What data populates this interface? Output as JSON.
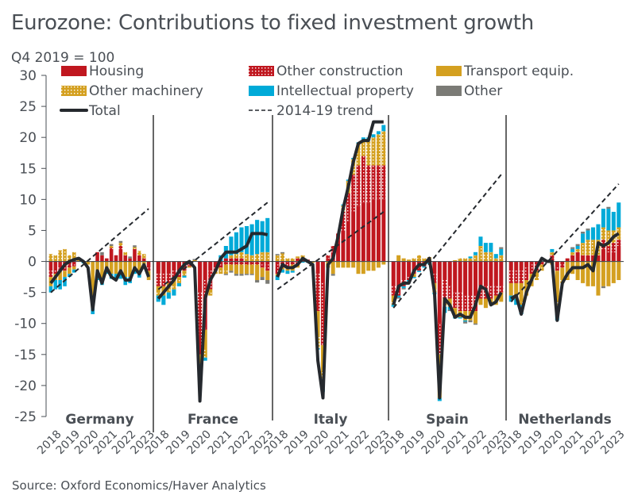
{
  "title": "Eurozone: Contributions to fixed investment growth",
  "subtitle": "Q4 2019 = 100",
  "source": "Source: Oxford Economics/Haver Analytics",
  "chart_data": {
    "type": "bar",
    "stacked": true,
    "title": "Eurozone: Contributions to fixed investment growth",
    "ylabel": "Q4 2019 = 100",
    "ylim": [
      -25,
      30
    ],
    "yticks": [
      30,
      25,
      20,
      15,
      10,
      5,
      0,
      -5,
      -10,
      -15,
      -20,
      -25
    ],
    "xtick_labels": [
      "2018",
      "2019",
      "2020",
      "2021",
      "2022",
      "2023"
    ],
    "legend_placement": "top",
    "legend": [
      {
        "key": "housing",
        "label": "Housing",
        "color": "#c0171f",
        "pattern": "solid"
      },
      {
        "key": "other_construction",
        "label": "Other construction",
        "color": "#c0171f",
        "pattern": "dotted"
      },
      {
        "key": "transport",
        "label": "Transport equip.",
        "color": "#d4a020",
        "pattern": "solid"
      },
      {
        "key": "other_machinery",
        "label": "Other machinery",
        "color": "#d4a020",
        "pattern": "dotted"
      },
      {
        "key": "ip",
        "label": "Intellectual property",
        "color": "#00aad8",
        "pattern": "solid"
      },
      {
        "key": "other",
        "label": "Other",
        "color": "#7b7b76",
        "pattern": "solid"
      },
      {
        "key": "total",
        "label": "Total",
        "color": "#25292e",
        "style": "line"
      },
      {
        "key": "trend",
        "label": "2014-19 trend",
        "color": "#25292e",
        "style": "dashed"
      }
    ],
    "quarters_per_panel": 22,
    "period": "2018Q1-2023Q2",
    "panels": [
      {
        "name": "Germany",
        "trend": [
          -5.0,
          8.5
        ],
        "total": [
          -3.5,
          -2.5,
          -1.5,
          -0.5,
          0,
          0.3,
          0.5,
          0,
          -1,
          -7.8,
          -1.5,
          -3.5,
          -1,
          -2.5,
          -3,
          -1.5,
          -3,
          -3,
          -1,
          -2,
          -0.5,
          -2.5
        ],
        "housing": [
          -1.5,
          -1.5,
          -1,
          -1,
          -0.5,
          -0.5,
          0,
          0,
          0,
          0,
          1.5,
          1,
          0.5,
          2,
          1,
          2,
          1,
          0.5,
          2,
          1,
          0.5,
          -1
        ],
        "other_construction": [
          -1,
          -0.5,
          -0.5,
          -0.5,
          -0.5,
          -0.3,
          0,
          0,
          0,
          0,
          0,
          0,
          0,
          0.2,
          0,
          0.5,
          0,
          0,
          0,
          0,
          0,
          -0.5
        ],
        "transport": [
          -1.5,
          -1,
          -1.5,
          -1,
          -1,
          -0.5,
          0,
          0,
          -0.5,
          -7.5,
          -2.5,
          -3,
          -1.5,
          -2,
          -2,
          -2,
          -2.5,
          -2.5,
          -1.5,
          -2,
          -1,
          -1.5
        ],
        "other_machinery": [
          1.2,
          1,
          1.8,
          2,
          1,
          1.5,
          0.5,
          0,
          0,
          0,
          0,
          0,
          0,
          0.3,
          0,
          0.5,
          0.5,
          0,
          0.3,
          0.7,
          0.7,
          0
        ],
        "ip": [
          -1,
          -1.5,
          -1.5,
          -1.5,
          -0.5,
          -0.5,
          0,
          -0.3,
          0,
          -1,
          -0.5,
          -0.8,
          -0.5,
          -0.8,
          -1,
          -0.8,
          -1.3,
          -1,
          -0.5,
          -0.6,
          0,
          0
        ],
        "other": [
          0,
          0,
          0,
          0,
          0,
          0,
          0,
          0,
          0,
          0,
          0,
          0.5,
          0,
          0.3,
          0,
          0.3,
          0,
          0.3,
          0.3,
          0,
          0,
          0
        ]
      },
      {
        "name": "France",
        "trend": [
          -4.5,
          9.5
        ],
        "total": [
          -6,
          -5,
          -4,
          -3,
          -1.5,
          -0.5,
          0,
          -1,
          -22.5,
          -6,
          -3,
          -1.5,
          0.5,
          1.5,
          1.5,
          1.5,
          2,
          2.5,
          4.5,
          4.5,
          4.5,
          4.3
        ],
        "housing": [
          -2,
          -2,
          -2,
          -1.5,
          -1.5,
          -1,
          -0.5,
          0,
          -5,
          -3,
          -1.5,
          -1,
          -0.5,
          0.5,
          0.5,
          0.5,
          0.5,
          0,
          0,
          0,
          -0.5,
          -0.5
        ],
        "other_construction": [
          -2,
          -2,
          -1.5,
          -1.5,
          -1,
          -0.5,
          -0.3,
          0,
          -10,
          -8,
          -3,
          -0.5,
          -0.5,
          -0.5,
          -0.5,
          -0.5,
          -0.5,
          -0.5,
          -0.5,
          -0.5,
          -0.5,
          -1
        ],
        "transport": [
          -1,
          -1,
          -1,
          -1,
          -0.5,
          -0.5,
          -0.2,
          0,
          -1.5,
          -3,
          -0.5,
          0,
          -0.5,
          -1,
          -1,
          -1.5,
          -1.5,
          -1.5,
          -1.5,
          -2.5,
          -1.5,
          -1.5
        ],
        "other_machinery": [
          -0.5,
          -0.5,
          -0.5,
          -0.5,
          -0.5,
          -0.3,
          0,
          0.2,
          0,
          -1.5,
          -0.5,
          -0.5,
          -0.5,
          -0.5,
          0.5,
          0.7,
          1,
          1.2,
          1,
          1.2,
          1.5,
          1.5
        ],
        "ip": [
          -1,
          -1.5,
          -1,
          -1,
          -0.5,
          -0.3,
          0,
          0,
          -0.5,
          -0.5,
          0,
          0,
          1,
          2,
          3,
          3.5,
          4,
          4.5,
          5,
          5.5,
          5,
          5.5
        ],
        "other": [
          0,
          0,
          0,
          0,
          0,
          0,
          0,
          0.2,
          0,
          0,
          0,
          0,
          0,
          -0.2,
          -0.3,
          -0.3,
          -0.3,
          -0.2,
          -0.2,
          -0.4,
          -0.5,
          -0.6
        ]
      },
      {
        "name": "Italy",
        "trend": [
          -4.5,
          8.0
        ],
        "total": [
          -2.5,
          -0.5,
          -1,
          -1,
          -0.5,
          0.5,
          0,
          -0.5,
          -16,
          -22,
          -0.5,
          0.5,
          4,
          8.5,
          12,
          16,
          19,
          19.5,
          19.5,
          22.5,
          22.5,
          22.5
        ],
        "housing": [
          -0.5,
          0,
          0,
          0,
          0.5,
          0.5,
          0.3,
          0,
          -2,
          -3.5,
          0.5,
          1.5,
          3.5,
          5,
          6.5,
          8,
          9,
          9.5,
          9.5,
          10,
          10,
          10
        ],
        "other_construction": [
          -1.5,
          -1,
          -1,
          -0.5,
          -0.5,
          0,
          0,
          0,
          -6,
          -10,
          0.5,
          1,
          1,
          3,
          4.5,
          6,
          6.5,
          7.5,
          6,
          5.5,
          5.5,
          5.5
        ],
        "transport": [
          -0.3,
          -0.3,
          -0.5,
          -1,
          -0.5,
          0,
          0,
          -0.2,
          -4,
          -4,
          -1,
          -2,
          -1,
          -1,
          -1,
          -1,
          -2,
          -2,
          -1.5,
          -1.5,
          -1,
          -0.5
        ],
        "other_machinery": [
          1,
          1.3,
          0.5,
          0.5,
          0.3,
          0.5,
          0,
          0,
          -2,
          -3,
          0,
          0,
          0,
          1,
          2,
          2.5,
          3.5,
          2.5,
          4,
          4.5,
          5,
          5.5
        ],
        "ip": [
          -0.7,
          -0.5,
          -0.5,
          -0.3,
          0,
          -0.2,
          -0.2,
          0,
          -0.2,
          -0.5,
          0,
          0,
          0,
          0.2,
          0.2,
          0.2,
          0.2,
          0.5,
          0.5,
          0.5,
          0.5,
          1
        ],
        "other": [
          0.2,
          0.2,
          0,
          0,
          0,
          0,
          0,
          0,
          0,
          0,
          0,
          -0.3,
          0,
          0,
          0,
          0,
          0,
          0,
          0,
          0,
          0,
          0
        ]
      },
      {
        "name": "Spain",
        "trend": [
          -7.5,
          14.0
        ],
        "total": [
          -7,
          -4,
          -3.5,
          -3.5,
          -1.5,
          -0.5,
          -0.5,
          0.5,
          -5,
          -22,
          -6,
          -7,
          -9,
          -8.5,
          -9,
          -9,
          -7,
          -4,
          -4.5,
          -7,
          -6.5,
          -5
        ],
        "housing": [
          -4,
          -4,
          -3,
          -2.5,
          -1.5,
          -1,
          -0.5,
          0,
          -2,
          -10,
          -3,
          -4,
          -5,
          -5,
          -5.5,
          -5.5,
          -5.5,
          -4,
          -4,
          -4,
          -4,
          -4
        ],
        "other_construction": [
          -1.5,
          -1.5,
          -1,
          -0.5,
          -0.5,
          -0.5,
          -0.3,
          -0.2,
          -1.5,
          -5,
          -3,
          -2,
          -2.5,
          -3,
          -2.5,
          -2.5,
          -2.5,
          -2,
          -2,
          -2,
          -1.5,
          -1
        ],
        "transport": [
          -1,
          1,
          0.5,
          0,
          -0.5,
          0.5,
          0,
          0.5,
          -1,
          -5,
          -1,
          -1,
          -1.5,
          -1,
          -1.5,
          -1.5,
          -2,
          -1,
          -1.5,
          -1,
          -1.5,
          -1.5
        ],
        "other_machinery": [
          -0.5,
          0,
          0,
          0.3,
          0.5,
          0.5,
          0.5,
          0.2,
          -0.5,
          -2,
          -0.3,
          -0.3,
          0.2,
          0.5,
          0.5,
          0.5,
          1,
          2.5,
          1.5,
          1.5,
          0.5,
          1
        ],
        "ip": [
          -0.3,
          -0.3,
          -0.3,
          -0.2,
          -0.2,
          -0.2,
          -0.2,
          -0.2,
          -0.3,
          -0.5,
          -1,
          -0.5,
          -0.2,
          -0.2,
          -0.2,
          0.3,
          0.5,
          1.5,
          1.5,
          1.5,
          0.7,
          1
        ],
        "other": [
          0,
          -0.2,
          -0.2,
          0,
          0,
          0,
          0,
          0,
          0,
          0,
          0,
          -0.2,
          0,
          0,
          -0.3,
          -0.3,
          -0.2,
          0,
          0,
          0,
          0,
          0.3
        ]
      },
      {
        "name": "Netherlands",
        "trend": [
          -6.5,
          12.5
        ],
        "total": [
          -6,
          -5.5,
          -8.5,
          -5,
          -3,
          -1,
          0.5,
          0,
          0,
          -9.5,
          -3.5,
          -2,
          -1,
          -1,
          -1,
          -0.5,
          -1.5,
          3,
          2.5,
          3,
          4,
          4.5
        ],
        "housing": [
          -1.5,
          -1.5,
          -1.5,
          -1,
          -0.5,
          -0.5,
          0,
          0,
          0.5,
          -1,
          -0.5,
          0.5,
          1,
          1.5,
          1,
          1,
          1,
          1,
          2,
          1.5,
          1.5,
          2.5
        ],
        "other_construction": [
          -2,
          -2,
          -2,
          -2,
          -1.5,
          -1,
          -0.5,
          0,
          0.5,
          -0.5,
          -0.5,
          0,
          0,
          0,
          0,
          0,
          0,
          0,
          1.5,
          1,
          1.5,
          1
        ],
        "transport": [
          -2,
          -2,
          -3,
          -2,
          -2,
          -1,
          -0.5,
          0,
          -0.5,
          -5,
          -2,
          -2.5,
          -2,
          -3,
          -3.5,
          -4,
          -4,
          -5.5,
          -4,
          -4,
          -3.5,
          -3
        ],
        "other_machinery": [
          0,
          -0.5,
          -0.5,
          -0.5,
          0,
          -0.5,
          -0.5,
          0,
          0.5,
          -2,
          -0.5,
          -0.5,
          0.5,
          0.5,
          2,
          2.5,
          2.5,
          2.5,
          2,
          2.5,
          2,
          2
        ],
        "ip": [
          -1,
          -1,
          -1.5,
          0,
          0,
          0,
          0,
          0,
          0.5,
          -1,
          0,
          0,
          0.5,
          0.5,
          1.5,
          1.5,
          2,
          2.5,
          3,
          3.5,
          3,
          4
        ],
        "other": [
          0,
          0,
          0,
          0,
          0,
          0,
          0,
          0,
          0,
          0,
          0,
          0,
          0.3,
          0.3,
          0.3,
          0.3,
          0,
          0,
          -0.3,
          0.3,
          0,
          0
        ]
      }
    ]
  }
}
